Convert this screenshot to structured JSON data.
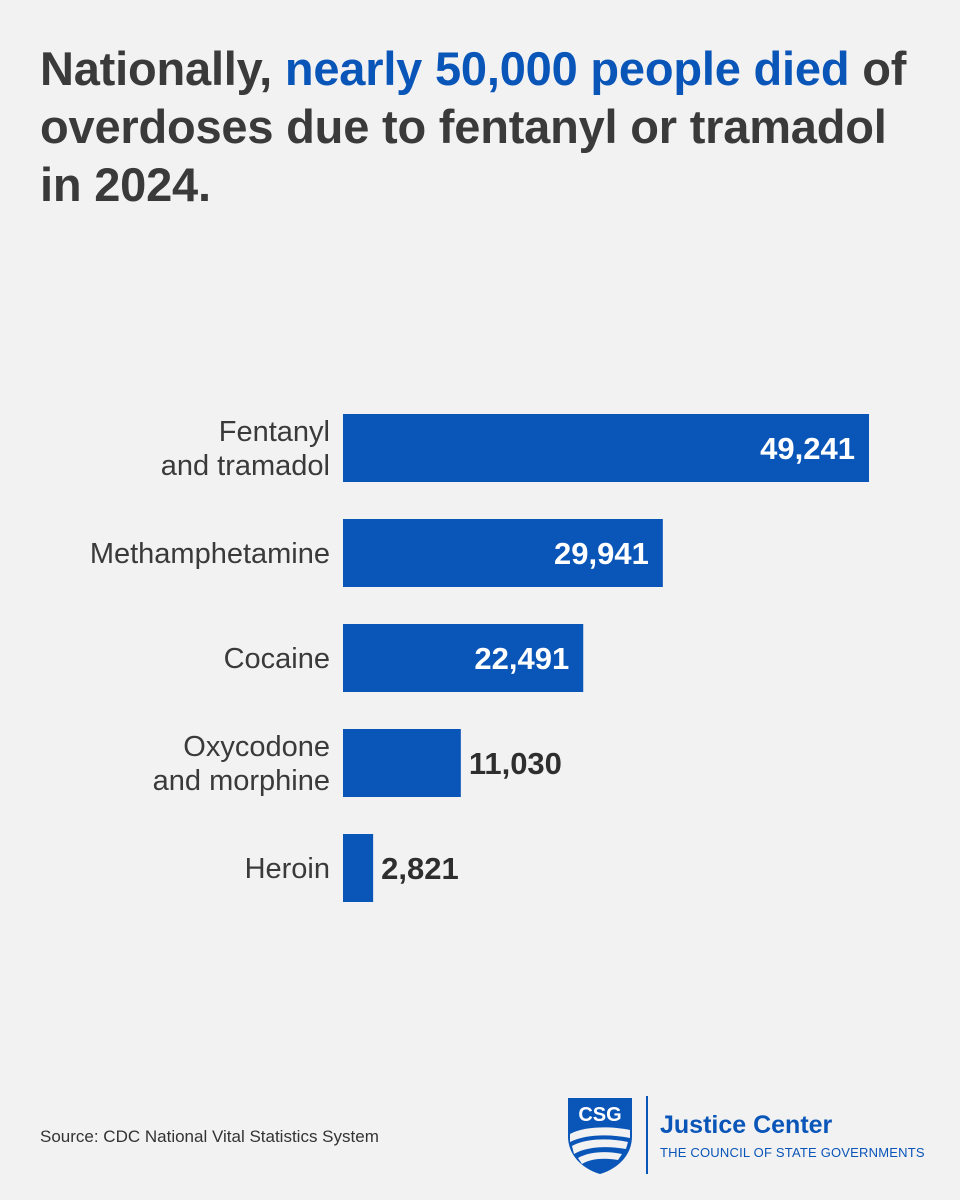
{
  "title": {
    "lead": "Nationally, ",
    "highlight": "nearly 50,000 people died",
    "rest": " of overdoses due to fentanyl or tramadol in 2024."
  },
  "chart_data": {
    "type": "bar",
    "orientation": "horizontal",
    "categories": [
      [
        "Fentanyl",
        "and tramadol"
      ],
      [
        "Methamphetamine"
      ],
      [
        "Cocaine"
      ],
      [
        "Oxycodone",
        "and morphine"
      ],
      [
        "Heroin"
      ]
    ],
    "values": [
      49241,
      29941,
      22491,
      11030,
      2821
    ],
    "value_labels": [
      "49,241",
      "29,941",
      "22,491",
      "11,030",
      "2,821"
    ],
    "xlim": [
      0,
      49241
    ],
    "grid": false,
    "legend": "none",
    "bar_color": "#0a55b8"
  },
  "source": "Source: CDC National Vital Statistics System",
  "logo": {
    "badge": "CSG",
    "name": "Justice Center",
    "subtitle": "THE COUNCIL OF STATE GOVERNMENTS"
  },
  "colors": {
    "accent": "#0a55b8",
    "text": "#3a3a3a",
    "background": "#f2f2f3"
  }
}
